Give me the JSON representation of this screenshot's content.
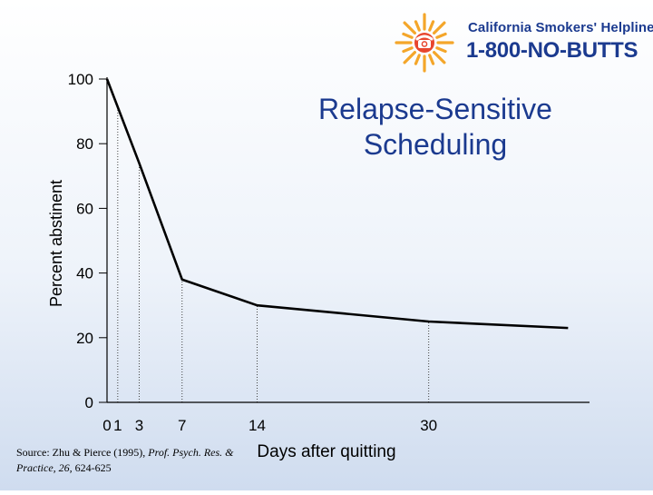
{
  "logo": {
    "line1": "California Smokers' Helpline",
    "line2": "1-800-NO-BUTTS",
    "icon": "sun-phone-icon",
    "line1_color": "#1b3a8f",
    "line2_color": "#1b3a8f",
    "ray_color": "#f4a62a",
    "phone_color": "#e8462e"
  },
  "source": {
    "prefix": "Source: Zhu & Pierce (1995), ",
    "journal": "Prof. Psych. Res. & Practice, 26,",
    "pages": " 624-625"
  },
  "chart_data": {
    "type": "line",
    "title": "Relapse-Sensitive Scheduling",
    "xlabel": "Days after quitting",
    "ylabel": "Percent abstinent",
    "ylim": [
      0,
      100
    ],
    "xlim": [
      0,
      45
    ],
    "y_ticks": [
      0,
      20,
      40,
      60,
      80,
      100
    ],
    "x_ticks": [
      {
        "value": 0,
        "label": "0"
      },
      {
        "value": 1,
        "label": "1"
      },
      {
        "value": 3,
        "label": "3"
      },
      {
        "value": 7,
        "label": "7"
      },
      {
        "value": 14,
        "label": "14"
      },
      {
        "value": 30,
        "label": "30"
      }
    ],
    "series": [
      {
        "x": [
          0,
          3,
          7,
          14,
          30,
          43
        ],
        "y": [
          100,
          74,
          38,
          30,
          25,
          23
        ]
      }
    ],
    "reference_lines_x": [
      1,
      3,
      7,
      14,
      30
    ],
    "grid": false,
    "title_color": "#1b3a8f",
    "line_color": "#000000"
  }
}
